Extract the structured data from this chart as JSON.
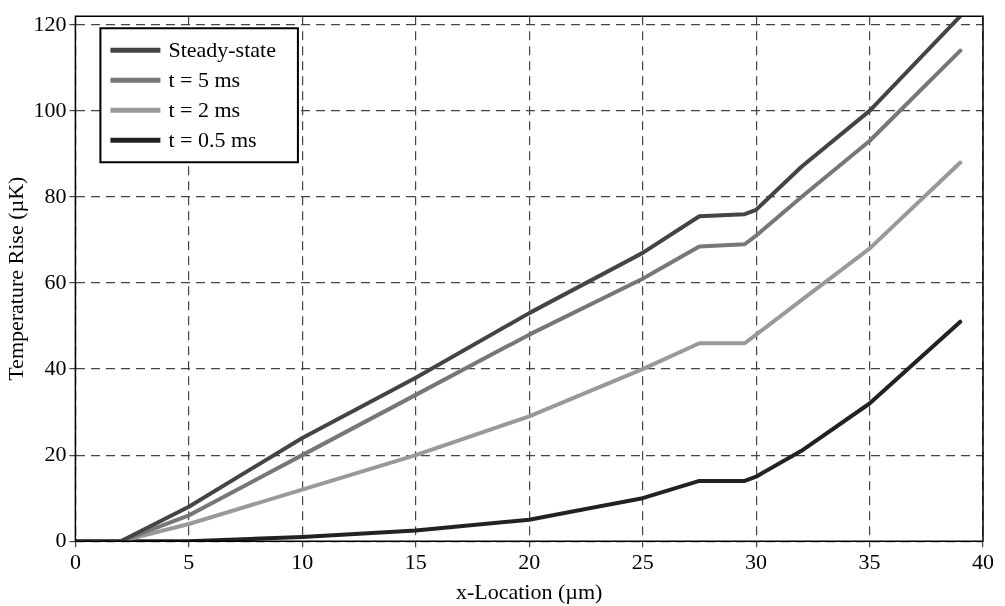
{
  "chart_data": {
    "type": "line",
    "xlabel": "x-Location (µm)",
    "ylabel": "Temperature Rise (µK)",
    "xlim": [
      0,
      40
    ],
    "xticks": [
      0,
      5,
      10,
      15,
      20,
      25,
      30,
      35,
      40
    ],
    "ylim": [
      0,
      122
    ],
    "yticks": [
      0,
      20,
      40,
      60,
      80,
      100,
      120
    ],
    "grid": true,
    "legend": "top left",
    "marker": "none",
    "line_style": "solid",
    "x": [
      0,
      2,
      5,
      10,
      15,
      20,
      25,
      27.5,
      29.5,
      30,
      32,
      35,
      39
    ],
    "series": [
      {
        "name": "Steady-state",
        "color": "#444444",
        "values": [
          0,
          0,
          8,
          24,
          38,
          53,
          67,
          75.5,
          76,
          77,
          87,
          100,
          122
        ]
      },
      {
        "name": "t = 5 ms",
        "color": "#777777",
        "values": [
          0,
          0,
          6,
          20,
          34,
          48,
          61,
          68.5,
          69,
          71,
          80,
          93,
          114
        ]
      },
      {
        "name": "t = 2 ms",
        "color": "#999999",
        "values": [
          0,
          0,
          4,
          12,
          20,
          29,
          40,
          46,
          46,
          48,
          56,
          68,
          88
        ]
      },
      {
        "name": "t = 0.5 ms",
        "color": "#222222",
        "values": [
          0,
          0,
          0,
          1,
          2.5,
          5,
          10,
          14,
          14,
          15,
          21,
          32,
          51
        ]
      }
    ]
  }
}
